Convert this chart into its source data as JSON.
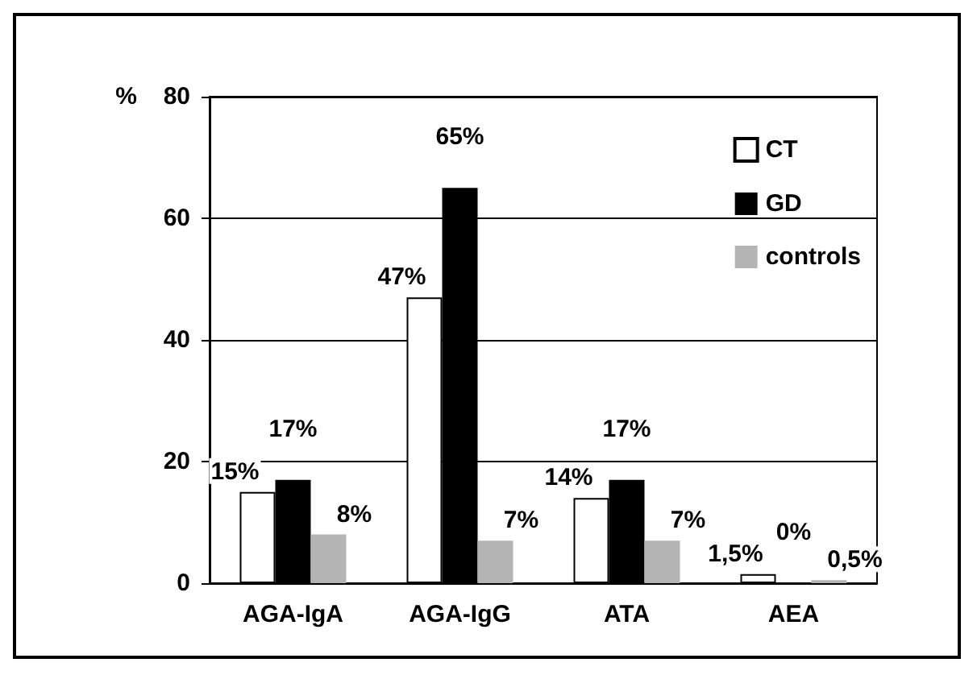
{
  "chart_data": {
    "type": "bar",
    "ylabel": "%",
    "categories": [
      "AGA-IgA",
      "AGA-IgG",
      "ATA",
      "AEA"
    ],
    "series": [
      {
        "name": "CT",
        "color": "#ffffff",
        "values": [
          15,
          47,
          14,
          1.5
        ],
        "value_labels": [
          "15%",
          "47%",
          "14%",
          "1,5%"
        ]
      },
      {
        "name": "GD",
        "color": "#000000",
        "values": [
          17,
          65,
          17,
          0
        ],
        "value_labels": [
          "17%",
          "65%",
          "17%",
          "0%"
        ]
      },
      {
        "name": "controls",
        "color": "#b4b4b4",
        "values": [
          8,
          7,
          7,
          0.5
        ],
        "value_labels": [
          "8%",
          "7%",
          "7%",
          "0,5%"
        ]
      }
    ],
    "ylim": [
      0,
      80
    ],
    "yticks": [
      0,
      20,
      40,
      60,
      80
    ],
    "grid": "y",
    "legend": "top right"
  }
}
